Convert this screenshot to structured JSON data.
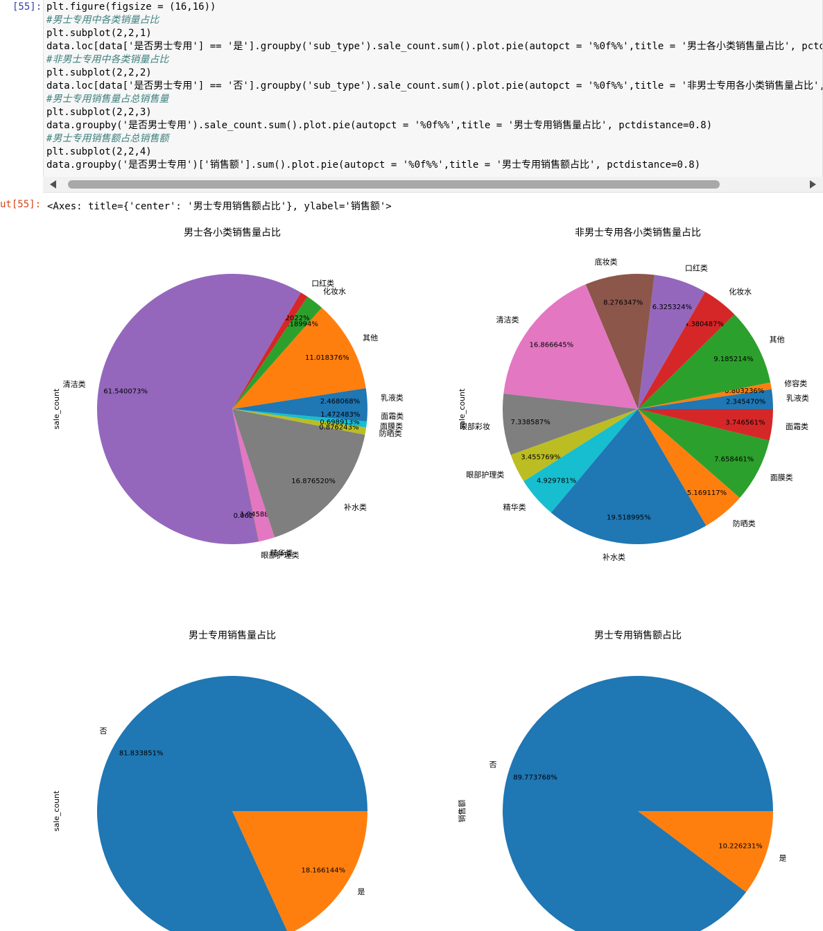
{
  "notebook": {
    "in_prompt": "[55]:",
    "out_prompt": "ut[55]:",
    "code_lines": [
      {
        "text": "plt.figure(figsize = (16,16))",
        "comment": false
      },
      {
        "text": "#男士专用中各类销量占比",
        "comment": true
      },
      {
        "text": "plt.subplot(2,2,1)",
        "comment": false
      },
      {
        "text": "data.loc[data['是否男士专用'] == '是'].groupby('sub_type').sale_count.sum().plot.pie(autopct = '%0f%%',title = '男士各小类销售量占比', pctdi",
        "comment": false
      },
      {
        "text": "#非男士专用中各类销量占比",
        "comment": true
      },
      {
        "text": "plt.subplot(2,2,2)",
        "comment": false
      },
      {
        "text": "data.loc[data['是否男士专用'] == '否'].groupby('sub_type').sale_count.sum().plot.pie(autopct = '%0f%%',title = '非男士专用各小类销售量占比',",
        "comment": false
      },
      {
        "text": "#男士专用销售量占总销售量",
        "comment": true
      },
      {
        "text": "plt.subplot(2,2,3)",
        "comment": false
      },
      {
        "text": "data.groupby('是否男士专用').sale_count.sum().plot.pie(autopct = '%0f%%',title = '男士专用销售量占比', pctdistance=0.8)",
        "comment": false
      },
      {
        "text": "#男士专用销售额占总销售额",
        "comment": true
      },
      {
        "text": "plt.subplot(2,2,4)",
        "comment": false
      },
      {
        "text": "data.groupby('是否男士专用')['销售额'].sum().plot.pie(autopct = '%0f%%',title = '男士专用销售额占比', pctdistance=0.8)",
        "comment": false
      }
    ],
    "output_text": "<Axes: title={'center': '男士专用销售额占比'}, ylabel='销售额'>"
  },
  "colors": {
    "blue": "#1f77b4",
    "orange": "#ff7f0e",
    "green": "#2ca02c",
    "red": "#d62728",
    "purple": "#9467bd",
    "brown": "#8c564b",
    "pink": "#e377c2",
    "gray": "#7f7f7f",
    "olive": "#bcbd22",
    "cyan": "#17becf"
  },
  "chart_data": [
    {
      "type": "pie",
      "title": "男士各小类销售量占比",
      "ylabel": "sale_count",
      "slices": [
        {
          "label": "乳液类",
          "value": 2.468068,
          "pct": "2.468068%",
          "color": "blue"
        },
        {
          "label": "其他",
          "value": 11.018376,
          "pct": "11.018376%",
          "color": "orange"
        },
        {
          "label": "化妆水",
          "value": 2.118994,
          "pct": "2.118994%",
          "color": "green"
        },
        {
          "label": "口红类",
          "value": 0.922022,
          "pct": "0.922022%",
          "color": "red"
        },
        {
          "label": "清洁类",
          "value": 61.540073,
          "pct": "61.540073%",
          "color": "purple"
        },
        {
          "label": "眼部护理类",
          "value": 0.062,
          "pct": "0.062476%",
          "color": "brown"
        },
        {
          "label": "精华类",
          "value": 1.945888,
          "pct": "1.945888%",
          "color": "pink"
        },
        {
          "label": "补水类",
          "value": 16.87652,
          "pct": "16.876520%",
          "color": "gray"
        },
        {
          "label": "防晒类",
          "value": 0.876243,
          "pct": "0.876243%",
          "color": "olive"
        },
        {
          "label": "面膜类",
          "value": 0.698913,
          "pct": "0.698913%",
          "color": "cyan"
        },
        {
          "label": "面霜类",
          "value": 1.472483,
          "pct": "1.472483%",
          "color": "blue"
        }
      ]
    },
    {
      "type": "pie",
      "title": "非男士专用各小类销售量占比",
      "ylabel": "sale_count",
      "slices": [
        {
          "label": "乳液类",
          "value": 2.34547,
          "pct": "2.345470%",
          "color": "blue"
        },
        {
          "label": "修容类",
          "value": 0.803236,
          "pct": "0.803236%",
          "color": "orange"
        },
        {
          "label": "其他",
          "value": 9.185214,
          "pct": "9.185214%",
          "color": "green"
        },
        {
          "label": "化妆水",
          "value": 4.380487,
          "pct": "4.380487%",
          "color": "red"
        },
        {
          "label": "口红类",
          "value": 6.325324,
          "pct": "6.325324%",
          "color": "purple"
        },
        {
          "label": "底妆类",
          "value": 8.276347,
          "pct": "8.276347%",
          "color": "brown"
        },
        {
          "label": "清洁类",
          "value": 16.866645,
          "pct": "16.866645%",
          "color": "pink"
        },
        {
          "label": "眼部彩妆",
          "value": 7.338587,
          "pct": "7.338587%",
          "color": "gray"
        },
        {
          "label": "眼部护理类",
          "value": 3.455769,
          "pct": "3.455769%",
          "color": "olive"
        },
        {
          "label": "精华类",
          "value": 4.929781,
          "pct": "4.929781%",
          "color": "cyan"
        },
        {
          "label": "补水类",
          "value": 19.518995,
          "pct": "19.518995%",
          "color": "blue"
        },
        {
          "label": "防晒类",
          "value": 5.169117,
          "pct": "5.169117%",
          "color": "orange"
        },
        {
          "label": "面膜类",
          "value": 7.658461,
          "pct": "7.658461%",
          "color": "green"
        },
        {
          "label": "面霜类",
          "value": 3.746561,
          "pct": "3.746561%",
          "color": "red"
        }
      ]
    },
    {
      "type": "pie",
      "title": "男士专用销售量占比",
      "ylabel": "sale_count",
      "slices": [
        {
          "label": "否",
          "value": 81.833851,
          "pct": "81.833851%",
          "color": "blue"
        },
        {
          "label": "是",
          "value": 18.166144,
          "pct": "18.166144%",
          "color": "orange"
        }
      ]
    },
    {
      "type": "pie",
      "title": "男士专用销售额占比",
      "ylabel": "销售额",
      "slices": [
        {
          "label": "否",
          "value": 89.773768,
          "pct": "89.773768%",
          "color": "blue"
        },
        {
          "label": "是",
          "value": 10.226231,
          "pct": "10.226231%",
          "color": "orange"
        }
      ]
    }
  ]
}
